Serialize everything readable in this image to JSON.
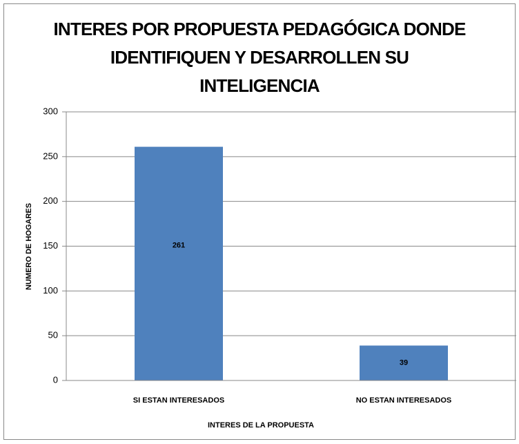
{
  "chart_data": {
    "type": "bar",
    "title": "INTERES POR PROPUESTA PEDAGÓGICA DONDE IDENTIFIQUEN Y DESARROLLEN SU INTELIGENCIA",
    "x_label": "INTERES DE LA PROPUESTA",
    "y_label": "NUMERO DE HOGARES",
    "categories": [
      "SI ESTAN INTERESADOS",
      "NO ESTAN INTERESADOS"
    ],
    "values": [
      261,
      39
    ],
    "color": "#4f81bd",
    "ylim": [
      0,
      300
    ],
    "yticks": [
      0,
      50,
      100,
      150,
      200,
      250,
      300
    ],
    "grid": true
  }
}
